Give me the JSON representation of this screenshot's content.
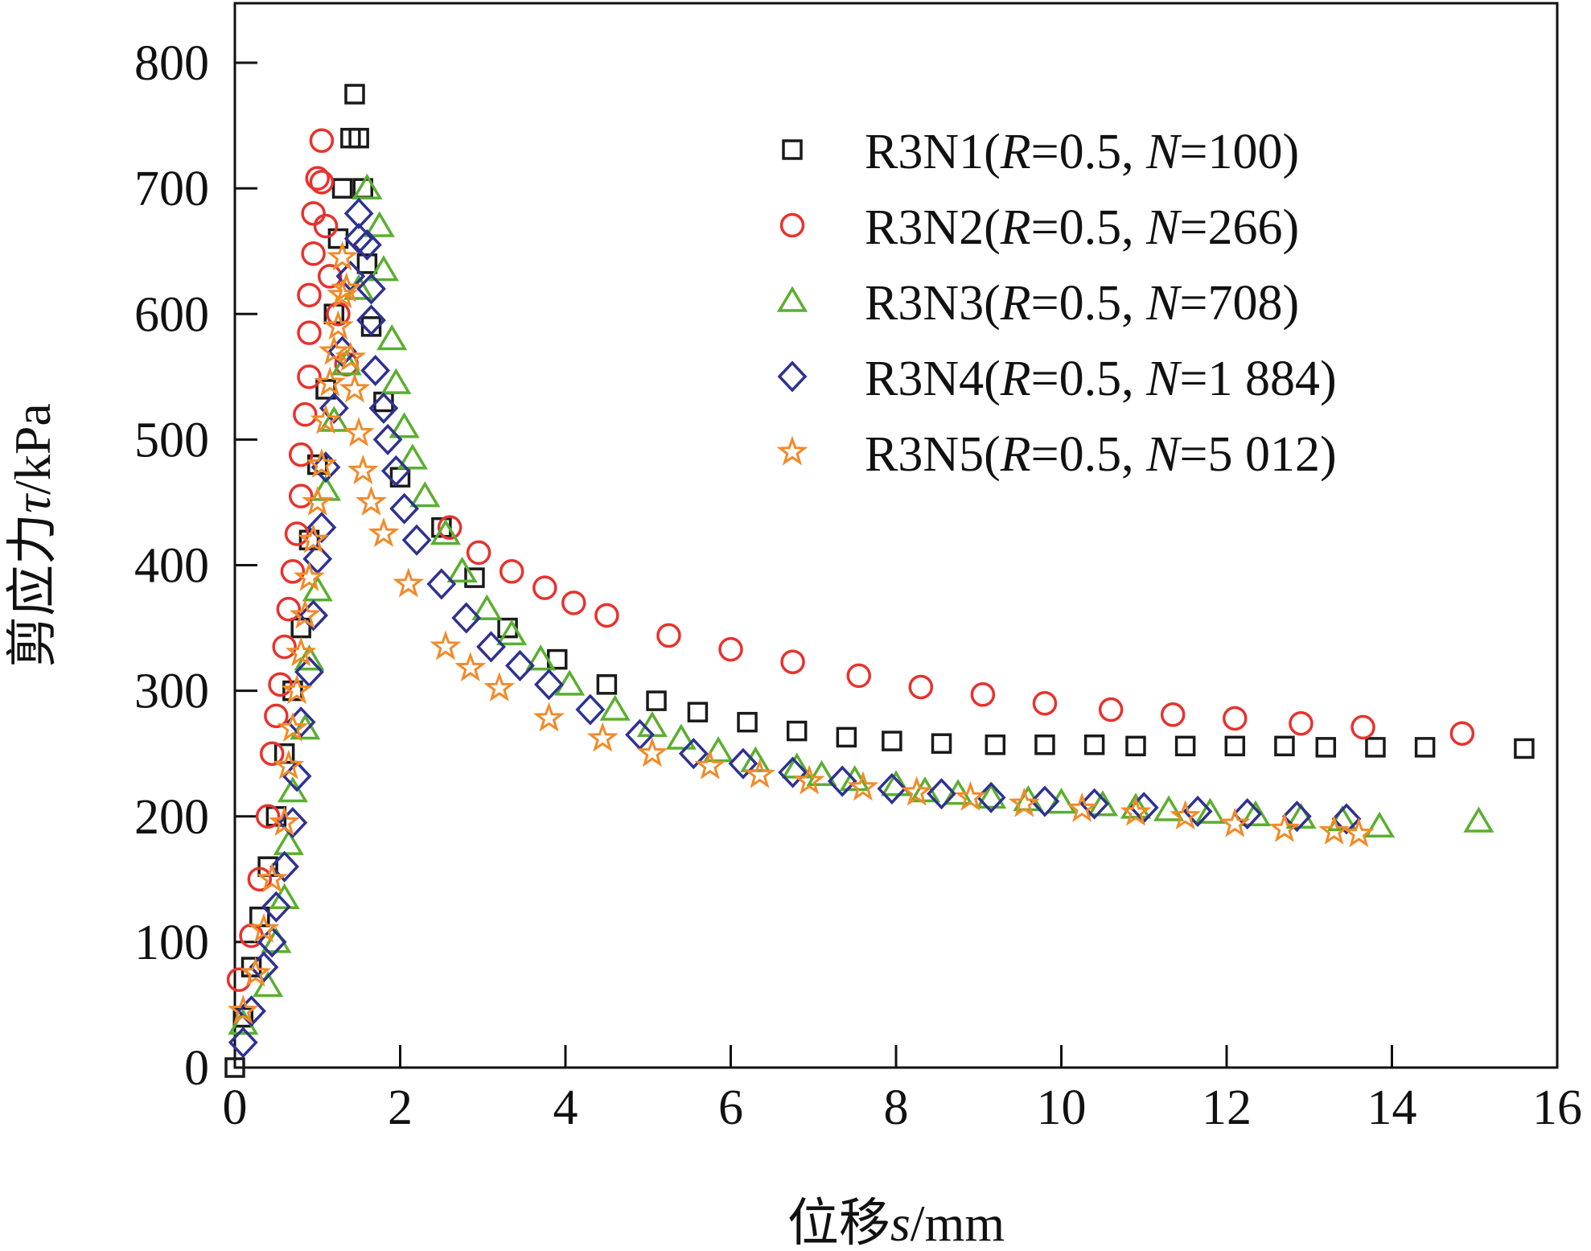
{
  "chart_data": {
    "type": "scatter",
    "xlabel": {
      "prefix": "位移",
      "var": "s",
      "unit": "/mm"
    },
    "ylabel": {
      "prefix": "剪应力",
      "var": "τ",
      "unit": "/kPa"
    },
    "xlim": [
      0,
      16
    ],
    "ylim": [
      0,
      800
    ],
    "xticks": [
      0,
      2,
      4,
      6,
      8,
      10,
      12,
      14,
      16
    ],
    "yticks": [
      0,
      100,
      200,
      300,
      400,
      500,
      600,
      700,
      800
    ],
    "legend_position": "top-right",
    "series": [
      {
        "name": "R3N1",
        "R": "0.5",
        "N": "100",
        "marker": "square",
        "color": "#1a1a1a",
        "points": [
          [
            0,
            0
          ],
          [
            0.1,
            40
          ],
          [
            0.2,
            80
          ],
          [
            0.3,
            120
          ],
          [
            0.4,
            160
          ],
          [
            0.5,
            200
          ],
          [
            0.6,
            250
          ],
          [
            0.7,
            300
          ],
          [
            0.8,
            350
          ],
          [
            0.9,
            420
          ],
          [
            1.0,
            480
          ],
          [
            1.1,
            540
          ],
          [
            1.2,
            600
          ],
          [
            1.25,
            660
          ],
          [
            1.3,
            700
          ],
          [
            1.4,
            740
          ],
          [
            1.45,
            775
          ],
          [
            1.5,
            740
          ],
          [
            1.55,
            700
          ],
          [
            1.6,
            640
          ],
          [
            1.65,
            590
          ],
          [
            1.8,
            530
          ],
          [
            2.0,
            470
          ],
          [
            2.5,
            430
          ],
          [
            2.9,
            390
          ],
          [
            3.3,
            350
          ],
          [
            3.9,
            325
          ],
          [
            4.5,
            305
          ],
          [
            5.1,
            292
          ],
          [
            5.6,
            283
          ],
          [
            6.2,
            275
          ],
          [
            6.8,
            268
          ],
          [
            7.4,
            263
          ],
          [
            7.95,
            260
          ],
          [
            8.55,
            258
          ],
          [
            9.2,
            257
          ],
          [
            9.8,
            257
          ],
          [
            10.4,
            257
          ],
          [
            10.9,
            256
          ],
          [
            11.5,
            256
          ],
          [
            12.1,
            256
          ],
          [
            12.7,
            256
          ],
          [
            13.2,
            255
          ],
          [
            13.8,
            255
          ],
          [
            14.4,
            255
          ],
          [
            15.6,
            254
          ]
        ]
      },
      {
        "name": "R3N2",
        "R": "0.5",
        "N": "266",
        "marker": "circle",
        "color": "#e8322d",
        "points": [
          [
            0.05,
            70
          ],
          [
            0.2,
            105
          ],
          [
            0.3,
            150
          ],
          [
            0.4,
            200
          ],
          [
            0.45,
            250
          ],
          [
            0.5,
            280
          ],
          [
            0.55,
            305
          ],
          [
            0.6,
            335
          ],
          [
            0.65,
            365
          ],
          [
            0.7,
            395
          ],
          [
            0.75,
            425
          ],
          [
            0.8,
            455
          ],
          [
            0.8,
            488
          ],
          [
            0.85,
            520
          ],
          [
            0.9,
            550
          ],
          [
            0.9,
            585
          ],
          [
            0.9,
            615
          ],
          [
            0.95,
            648
          ],
          [
            0.95,
            680
          ],
          [
            1.0,
            708
          ],
          [
            1.05,
            705
          ],
          [
            1.05,
            738
          ],
          [
            1.1,
            670
          ],
          [
            1.15,
            630
          ],
          [
            1.25,
            600
          ],
          [
            1.35,
            560
          ],
          [
            2.6,
            430
          ],
          [
            2.95,
            410
          ],
          [
            3.35,
            395
          ],
          [
            3.75,
            382
          ],
          [
            4.1,
            370
          ],
          [
            4.5,
            360
          ],
          [
            5.25,
            344
          ],
          [
            6.0,
            333
          ],
          [
            6.75,
            323
          ],
          [
            7.55,
            312
          ],
          [
            8.3,
            303
          ],
          [
            9.05,
            297
          ],
          [
            9.8,
            290
          ],
          [
            10.6,
            285
          ],
          [
            11.35,
            281
          ],
          [
            12.1,
            278
          ],
          [
            12.9,
            274
          ],
          [
            13.65,
            271
          ],
          [
            14.85,
            266
          ]
        ]
      },
      {
        "name": "R3N3",
        "R": "0.5",
        "N": "708",
        "marker": "triangle",
        "color": "#5aaf2e",
        "points": [
          [
            0.1,
            35
          ],
          [
            0.4,
            65
          ],
          [
            0.5,
            100
          ],
          [
            0.6,
            135
          ],
          [
            0.65,
            178
          ],
          [
            0.7,
            220
          ],
          [
            0.85,
            270
          ],
          [
            0.9,
            325
          ],
          [
            1.0,
            380
          ],
          [
            1.1,
            460
          ],
          [
            1.2,
            515
          ],
          [
            1.35,
            560
          ],
          [
            1.5,
            620
          ],
          [
            1.6,
            700
          ],
          [
            1.75,
            670
          ],
          [
            1.8,
            635
          ],
          [
            1.9,
            580
          ],
          [
            1.95,
            545
          ],
          [
            2.05,
            510
          ],
          [
            2.15,
            485
          ],
          [
            2.3,
            455
          ],
          [
            2.55,
            425
          ],
          [
            2.75,
            395
          ],
          [
            3.05,
            365
          ],
          [
            3.35,
            345
          ],
          [
            3.7,
            325
          ],
          [
            4.05,
            305
          ],
          [
            4.6,
            285
          ],
          [
            5.05,
            272
          ],
          [
            5.4,
            262
          ],
          [
            5.85,
            252
          ],
          [
            6.3,
            244
          ],
          [
            6.8,
            239
          ],
          [
            7.1,
            233
          ],
          [
            7.5,
            229
          ],
          [
            8.0,
            225
          ],
          [
            8.35,
            220
          ],
          [
            8.75,
            218
          ],
          [
            9.15,
            215
          ],
          [
            9.6,
            213
          ],
          [
            10.0,
            211
          ],
          [
            10.5,
            209
          ],
          [
            10.9,
            207
          ],
          [
            11.3,
            205
          ],
          [
            11.8,
            203
          ],
          [
            12.35,
            201
          ],
          [
            12.9,
            199
          ],
          [
            13.4,
            197
          ],
          [
            13.85,
            192
          ],
          [
            15.05,
            196
          ]
        ]
      },
      {
        "name": "R3N4",
        "R": "0.5",
        "N": "1 884",
        "marker": "diamond",
        "color": "#2e3192",
        "points": [
          [
            0.1,
            20
          ],
          [
            0.2,
            45
          ],
          [
            0.35,
            80
          ],
          [
            0.45,
            100
          ],
          [
            0.5,
            128
          ],
          [
            0.6,
            160
          ],
          [
            0.7,
            195
          ],
          [
            0.75,
            232
          ],
          [
            0.8,
            275
          ],
          [
            0.9,
            315
          ],
          [
            0.95,
            360
          ],
          [
            1.0,
            405
          ],
          [
            1.05,
            430
          ],
          [
            1.1,
            478
          ],
          [
            1.2,
            525
          ],
          [
            1.3,
            570
          ],
          [
            1.4,
            630
          ],
          [
            1.5,
            660
          ],
          [
            1.5,
            680
          ],
          [
            1.6,
            655
          ],
          [
            1.65,
            620
          ],
          [
            1.65,
            595
          ],
          [
            1.7,
            555
          ],
          [
            1.8,
            525
          ],
          [
            1.85,
            500
          ],
          [
            1.95,
            475
          ],
          [
            2.05,
            445
          ],
          [
            2.2,
            420
          ],
          [
            2.5,
            385
          ],
          [
            2.8,
            358
          ],
          [
            3.1,
            335
          ],
          [
            3.45,
            320
          ],
          [
            3.8,
            305
          ],
          [
            4.3,
            285
          ],
          [
            4.9,
            265
          ],
          [
            5.55,
            250
          ],
          [
            6.15,
            242
          ],
          [
            6.75,
            235
          ],
          [
            7.35,
            228
          ],
          [
            7.95,
            222
          ],
          [
            8.55,
            218
          ],
          [
            9.15,
            215
          ],
          [
            9.8,
            212
          ],
          [
            10.4,
            210
          ],
          [
            11.0,
            207
          ],
          [
            11.65,
            204
          ],
          [
            12.25,
            202
          ],
          [
            12.85,
            200
          ],
          [
            13.45,
            198
          ]
        ]
      },
      {
        "name": "R3N5",
        "R": "0.5",
        "N": "5 012",
        "marker": "star",
        "color": "#f28a28",
        "points": [
          [
            0.1,
            45
          ],
          [
            0.25,
            75
          ],
          [
            0.35,
            110
          ],
          [
            0.45,
            150
          ],
          [
            0.6,
            195
          ],
          [
            0.65,
            240
          ],
          [
            0.7,
            270
          ],
          [
            0.75,
            300
          ],
          [
            0.8,
            330
          ],
          [
            0.85,
            360
          ],
          [
            0.9,
            390
          ],
          [
            0.95,
            420
          ],
          [
            1.0,
            450
          ],
          [
            1.05,
            480
          ],
          [
            1.1,
            515
          ],
          [
            1.15,
            545
          ],
          [
            1.2,
            570
          ],
          [
            1.25,
            590
          ],
          [
            1.3,
            615
          ],
          [
            1.3,
            645
          ],
          [
            1.35,
            620
          ],
          [
            1.4,
            565
          ],
          [
            1.45,
            540
          ],
          [
            1.5,
            505
          ],
          [
            1.55,
            475
          ],
          [
            1.65,
            450
          ],
          [
            1.8,
            425
          ],
          [
            2.1,
            385
          ],
          [
            2.55,
            335
          ],
          [
            2.85,
            318
          ],
          [
            3.2,
            302
          ],
          [
            3.8,
            278
          ],
          [
            4.45,
            262
          ],
          [
            5.05,
            250
          ],
          [
            5.75,
            240
          ],
          [
            6.35,
            233
          ],
          [
            6.95,
            228
          ],
          [
            7.6,
            223
          ],
          [
            8.25,
            219
          ],
          [
            8.9,
            215
          ],
          [
            9.55,
            210
          ],
          [
            10.25,
            206
          ],
          [
            10.9,
            203
          ],
          [
            11.5,
            200
          ],
          [
            12.1,
            194
          ],
          [
            12.7,
            190
          ],
          [
            13.3,
            188
          ],
          [
            13.6,
            186
          ]
        ]
      }
    ]
  }
}
